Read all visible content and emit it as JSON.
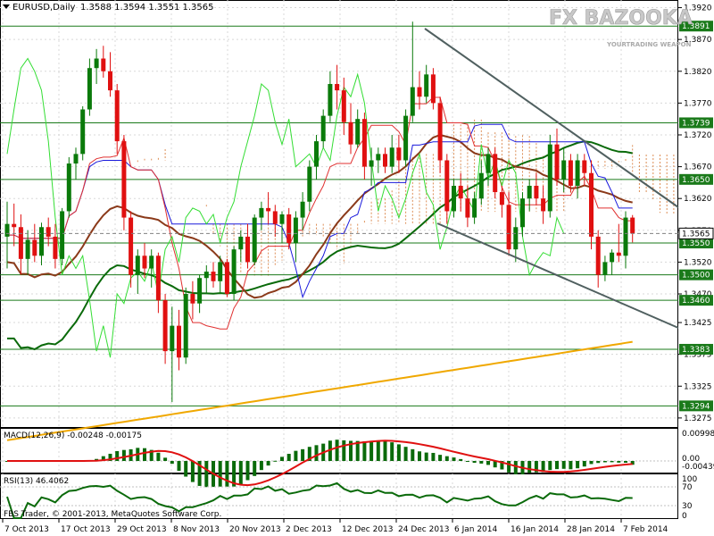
{
  "header": {
    "symbol": "EURUSD,Daily",
    "ohlc": "1.3588 1.3594 1.3551 1.3565"
  },
  "watermark": {
    "brand": "FX BAZOOKA",
    "tagline": "YOURTRADING WEAPON"
  },
  "copyright": "FBS Trader, © 2001-2013, MetaQuotes Software Corp.",
  "macd_panel": {
    "label": "MACD(12,26,9) -0.00248 -0.00175",
    "scale": [
      "0.00998",
      "0.00",
      "-0.00439"
    ]
  },
  "rsi_panel": {
    "label": "RSI(13) 46.4062",
    "scale": [
      "100",
      "70",
      "30",
      "0"
    ]
  },
  "price_scale": [
    "1.3920",
    "1.3870",
    "1.3820",
    "1.3770",
    "1.3720",
    "1.3670",
    "1.3620",
    "1.3570",
    "1.3520",
    "1.3470",
    "1.3425",
    "1.3375",
    "1.3325",
    "1.3275"
  ],
  "levels": [
    {
      "value": 1.3891,
      "label": "1.3891"
    },
    {
      "value": 1.3739,
      "label": "1.3739"
    },
    {
      "value": 1.365,
      "label": "1.3650"
    },
    {
      "value": 1.355,
      "label": "1.3550"
    },
    {
      "value": 1.35,
      "label": "1.3500"
    },
    {
      "value": 1.346,
      "label": "1.3460"
    },
    {
      "value": 1.3383,
      "label": "1.3383"
    },
    {
      "value": 1.3294,
      "label": "1.3294"
    }
  ],
  "current_price": {
    "value": 1.3565,
    "label": "1.3565"
  },
  "colors": {
    "bull": "#0a7a0a",
    "bear": "#e01010",
    "level": "#1a7a1a",
    "ma_brown": "#8b3a1a",
    "ma_green": "#0a6a0a",
    "ma_gold": "#f0a800",
    "tenkan": "#e03030",
    "kijun": "#1a1adc",
    "chikou": "#33dd33",
    "cloud": "#d2691e",
    "trendline": "#506060",
    "current": "#808080",
    "macd_hist": "#0a6a0a",
    "macd_signal": "#e01010",
    "rsi": "#0a6a0a"
  },
  "chart_data": {
    "type": "candlestick",
    "symbol": "EURUSD",
    "timeframe": "Daily",
    "ylim": [
      1.325,
      1.3935
    ],
    "date_labels": [
      "7 Oct 2013",
      "17 Oct 2013",
      "29 Oct 2013",
      "8 Nov 2013",
      "20 Nov 2013",
      "2 Dec 2013",
      "12 Dec 2013",
      "24 Dec 2013",
      "6 Jan 2014",
      "16 Jan 2014",
      "28 Jan 2014",
      "7 Feb 2014"
    ],
    "candles": [
      [
        1.356,
        1.3615,
        1.351,
        1.358
      ],
      [
        1.358,
        1.3612,
        1.3545,
        1.3575
      ],
      [
        1.3575,
        1.3595,
        1.35,
        1.3525
      ],
      [
        1.3525,
        1.357,
        1.35,
        1.3555
      ],
      [
        1.3555,
        1.358,
        1.352,
        1.353
      ],
      [
        1.353,
        1.3582,
        1.3515,
        1.3575
      ],
      [
        1.3575,
        1.359,
        1.3545,
        1.356
      ],
      [
        1.356,
        1.358,
        1.351,
        1.3525
      ],
      [
        1.3525,
        1.3605,
        1.3515,
        1.36
      ],
      [
        1.36,
        1.3685,
        1.359,
        1.3675
      ],
      [
        1.3675,
        1.37,
        1.365,
        1.369
      ],
      [
        1.369,
        1.3765,
        1.368,
        1.376
      ],
      [
        1.376,
        1.384,
        1.375,
        1.3825
      ],
      [
        1.3825,
        1.3855,
        1.38,
        1.384
      ],
      [
        1.384,
        1.386,
        1.381,
        1.382
      ],
      [
        1.382,
        1.385,
        1.378,
        1.379
      ],
      [
        1.379,
        1.38,
        1.369,
        1.371
      ],
      [
        1.371,
        1.372,
        1.357,
        1.359
      ],
      [
        1.359,
        1.36,
        1.348,
        1.35
      ],
      [
        1.35,
        1.354,
        1.347,
        1.353
      ],
      [
        1.353,
        1.355,
        1.3495,
        1.351
      ],
      [
        1.351,
        1.354,
        1.348,
        1.353
      ],
      [
        1.353,
        1.3535,
        1.344,
        1.346
      ],
      [
        1.346,
        1.347,
        1.336,
        1.338
      ],
      [
        1.338,
        1.345,
        1.33,
        1.342
      ],
      [
        1.342,
        1.3445,
        1.335,
        1.337
      ],
      [
        1.337,
        1.348,
        1.336,
        1.347
      ],
      [
        1.347,
        1.349,
        1.343,
        1.3455
      ],
      [
        1.3455,
        1.35,
        1.344,
        1.3495
      ],
      [
        1.3495,
        1.3515,
        1.347,
        1.3505
      ],
      [
        1.3505,
        1.352,
        1.348,
        1.349
      ],
      [
        1.349,
        1.353,
        1.347,
        1.352
      ],
      [
        1.352,
        1.3525,
        1.3465,
        1.347
      ],
      [
        1.347,
        1.3545,
        1.346,
        1.354
      ],
      [
        1.354,
        1.357,
        1.352,
        1.356
      ],
      [
        1.356,
        1.358,
        1.351,
        1.352
      ],
      [
        1.352,
        1.3595,
        1.3515,
        1.359
      ],
      [
        1.359,
        1.3615,
        1.357,
        1.3605
      ],
      [
        1.3605,
        1.363,
        1.358,
        1.36
      ],
      [
        1.36,
        1.361,
        1.356,
        1.358
      ],
      [
        1.358,
        1.36,
        1.355,
        1.3595
      ],
      [
        1.3595,
        1.3605,
        1.354,
        1.355
      ],
      [
        1.355,
        1.36,
        1.352,
        1.359
      ],
      [
        1.359,
        1.363,
        1.357,
        1.3615
      ],
      [
        1.3615,
        1.368,
        1.36,
        1.367
      ],
      [
        1.367,
        1.372,
        1.365,
        1.371
      ],
      [
        1.371,
        1.376,
        1.37,
        1.375
      ],
      [
        1.375,
        1.382,
        1.374,
        1.38
      ],
      [
        1.38,
        1.383,
        1.376,
        1.379
      ],
      [
        1.379,
        1.381,
        1.372,
        1.374
      ],
      [
        1.374,
        1.377,
        1.369,
        1.3705
      ],
      [
        1.3705,
        1.376,
        1.37,
        1.3745
      ],
      [
        1.3745,
        1.3755,
        1.365,
        1.367
      ],
      [
        1.367,
        1.37,
        1.364,
        1.368
      ],
      [
        1.368,
        1.37,
        1.366,
        1.369
      ],
      [
        1.369,
        1.37,
        1.366,
        1.367
      ],
      [
        1.367,
        1.372,
        1.366,
        1.37
      ],
      [
        1.37,
        1.372,
        1.366,
        1.368
      ],
      [
        1.368,
        1.376,
        1.367,
        1.375
      ],
      [
        1.375,
        1.3898,
        1.374,
        1.3795
      ],
      [
        1.3795,
        1.382,
        1.376,
        1.378
      ],
      [
        1.378,
        1.383,
        1.377,
        1.3815
      ],
      [
        1.3815,
        1.3825,
        1.376,
        1.377
      ],
      [
        1.377,
        1.378,
        1.366,
        1.368
      ],
      [
        1.368,
        1.369,
        1.358,
        1.36
      ],
      [
        1.36,
        1.365,
        1.359,
        1.364
      ],
      [
        1.364,
        1.366,
        1.36,
        1.362
      ],
      [
        1.362,
        1.364,
        1.3575,
        1.359
      ],
      [
        1.359,
        1.363,
        1.358,
        1.362
      ],
      [
        1.362,
        1.368,
        1.361,
        1.366
      ],
      [
        1.366,
        1.37,
        1.364,
        1.369
      ],
      [
        1.369,
        1.37,
        1.362,
        1.363
      ],
      [
        1.363,
        1.364,
        1.359,
        1.361
      ],
      [
        1.361,
        1.363,
        1.353,
        1.354
      ],
      [
        1.354,
        1.359,
        1.352,
        1.3575
      ],
      [
        1.3575,
        1.363,
        1.356,
        1.362
      ],
      [
        1.362,
        1.365,
        1.36,
        1.364
      ],
      [
        1.364,
        1.366,
        1.361,
        1.362
      ],
      [
        1.362,
        1.364,
        1.358,
        1.36
      ],
      [
        1.36,
        1.372,
        1.359,
        1.3705
      ],
      [
        1.3705,
        1.373,
        1.364,
        1.365
      ],
      [
        1.365,
        1.37,
        1.363,
        1.368
      ],
      [
        1.368,
        1.369,
        1.363,
        1.364
      ],
      [
        1.364,
        1.369,
        1.362,
        1.368
      ],
      [
        1.368,
        1.369,
        1.364,
        1.366
      ],
      [
        1.366,
        1.368,
        1.354,
        1.356
      ],
      [
        1.356,
        1.357,
        1.348,
        1.35
      ],
      [
        1.35,
        1.353,
        1.349,
        1.352
      ],
      [
        1.352,
        1.354,
        1.35,
        1.3535
      ],
      [
        1.3535,
        1.358,
        1.352,
        1.353
      ],
      [
        1.353,
        1.36,
        1.351,
        1.359
      ],
      [
        1.359,
        1.3594,
        1.3551,
        1.3565
      ]
    ]
  }
}
